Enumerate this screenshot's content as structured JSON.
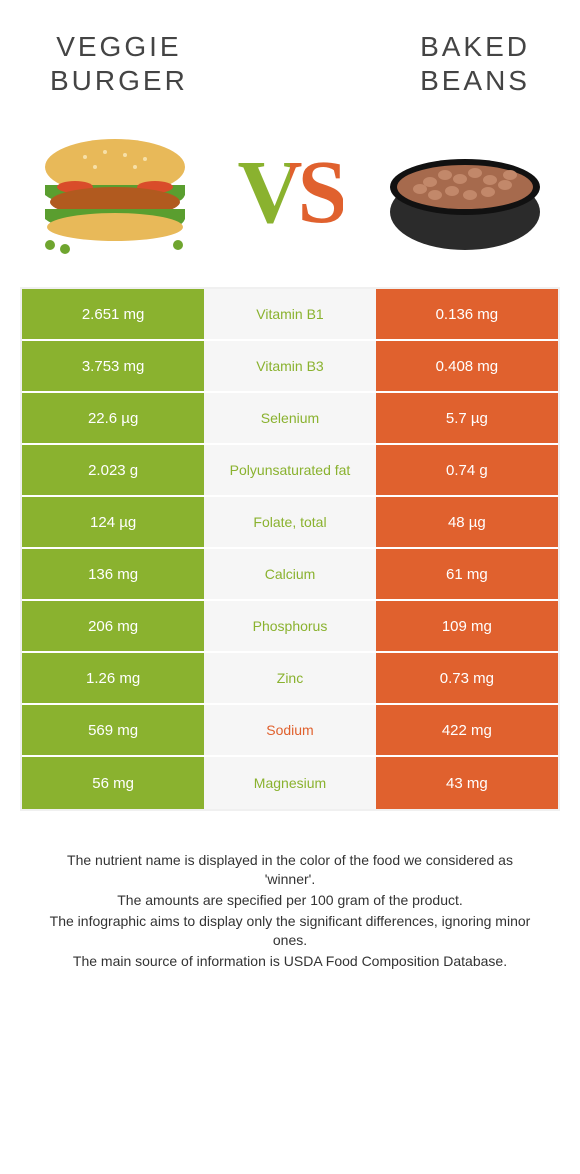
{
  "titles": {
    "left": "VEGGIE\nBURGER",
    "right": "BAKED\nBEANS",
    "vs": "VS"
  },
  "colors": {
    "left": "#8ab22f",
    "right": "#e0612e",
    "mid_bg": "#f6f6f6",
    "row_border": "#ffffff",
    "table_border": "#f0f0f0",
    "footer_text": "#333333"
  },
  "table": {
    "rows": [
      {
        "left": "2.651 mg",
        "label": "Vitamin B1",
        "right": "0.136 mg",
        "winner": "left"
      },
      {
        "left": "3.753 mg",
        "label": "Vitamin B3",
        "right": "0.408 mg",
        "winner": "left"
      },
      {
        "left": "22.6 µg",
        "label": "Selenium",
        "right": "5.7 µg",
        "winner": "left"
      },
      {
        "left": "2.023 g",
        "label": "Polyunsaturated fat",
        "right": "0.74 g",
        "winner": "left"
      },
      {
        "left": "124 µg",
        "label": "Folate, total",
        "right": "48 µg",
        "winner": "left"
      },
      {
        "left": "136 mg",
        "label": "Calcium",
        "right": "61 mg",
        "winner": "left"
      },
      {
        "left": "206 mg",
        "label": "Phosphorus",
        "right": "109 mg",
        "winner": "left"
      },
      {
        "left": "1.26 mg",
        "label": "Zinc",
        "right": "0.73 mg",
        "winner": "left"
      },
      {
        "left": "569 mg",
        "label": "Sodium",
        "right": "422 mg",
        "winner": "right"
      },
      {
        "left": "56 mg",
        "label": "Magnesium",
        "right": "43 mg",
        "winner": "left"
      }
    ]
  },
  "footer": [
    "The nutrient name is displayed in the color of the food we considered as 'winner'.",
    "The amounts are specified per 100 gram of the product.",
    "The infographic aims to display only the significant differences, ignoring minor ones.",
    "The main source of information is USDA Food Composition Database."
  ],
  "fontsize": {
    "title": 28,
    "vs": 90,
    "cell_value": 15,
    "cell_label": 14,
    "footer": 14
  }
}
